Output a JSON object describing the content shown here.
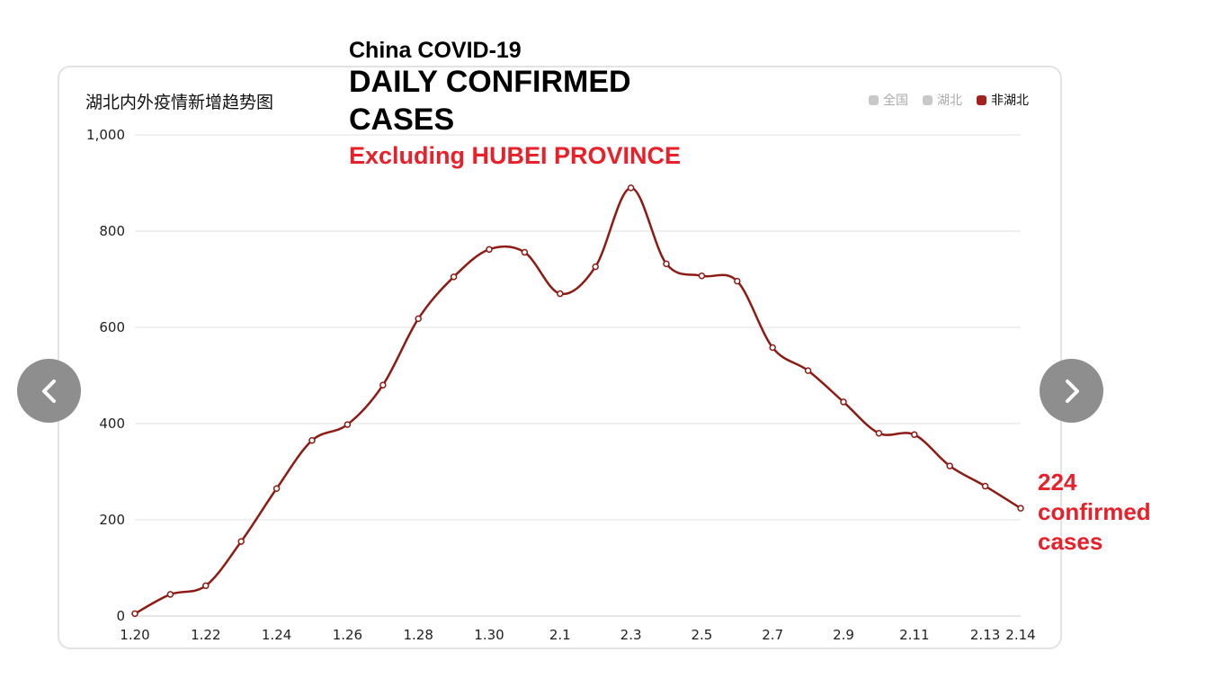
{
  "overlay": {
    "line1": "China COVID-19",
    "line2": "DAILY CONFIRMED CASES",
    "line3": "Excluding HUBEI PROVINCE"
  },
  "callout": {
    "value": "224",
    "line2": "confirmed",
    "line3": "cases"
  },
  "legend": [
    {
      "label": "全国",
      "color": "#c8c8c8"
    },
    {
      "label": "湖北",
      "color": "#c8c8c8"
    },
    {
      "label": "非湖北",
      "color": "#a3211c"
    }
  ],
  "icons": {
    "prev": "chevron-left-icon",
    "next": "chevron-right-icon"
  },
  "chart_data": {
    "type": "line",
    "title": "湖北内外疫情新增趋势图",
    "xlabel": "",
    "ylabel": "",
    "ylim": [
      0,
      1000
    ],
    "yticks": [
      0,
      200,
      400,
      600,
      800,
      1000
    ],
    "ytick_labels": [
      "0",
      "200",
      "400",
      "600",
      "800",
      "1,000"
    ],
    "x": [
      "1.20",
      "1.21",
      "1.22",
      "1.23",
      "1.24",
      "1.25",
      "1.26",
      "1.27",
      "1.28",
      "1.29",
      "1.30",
      "1.31",
      "2.1",
      "2.2",
      "2.3",
      "2.4",
      "2.5",
      "2.6",
      "2.7",
      "2.8",
      "2.9",
      "2.10",
      "2.11",
      "2.12",
      "2.13",
      "2.14"
    ],
    "xtick_labels": [
      "1.20",
      "1.22",
      "1.24",
      "1.26",
      "1.28",
      "1.30",
      "2.1",
      "2.3",
      "2.5",
      "2.7",
      "2.9",
      "2.11",
      "2.13",
      "2.14"
    ],
    "series": [
      {
        "name": "非湖北",
        "color": "#8e1a14",
        "values": [
          5,
          45,
          63,
          155,
          265,
          365,
          398,
          480,
          618,
          705,
          762,
          756,
          670,
          726,
          890,
          732,
          707,
          696,
          558,
          510,
          445,
          380,
          377,
          312,
          270,
          224
        ]
      }
    ],
    "grid": true,
    "legend_position": "top-right"
  }
}
